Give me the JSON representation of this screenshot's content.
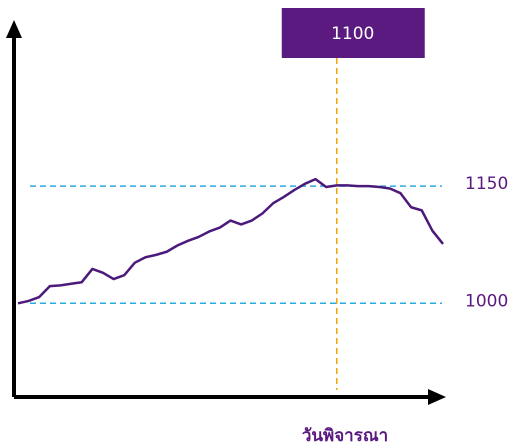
{
  "chart_data": {
    "type": "line",
    "x": [
      0,
      1,
      2,
      3,
      4,
      5,
      6,
      7,
      8,
      9,
      10,
      11,
      12,
      13,
      14,
      15,
      16,
      17,
      18,
      19,
      20,
      21,
      22,
      23,
      24,
      25,
      26,
      27,
      28,
      29,
      30,
      31,
      32,
      33,
      34,
      35,
      36,
      37,
      38,
      39,
      40
    ],
    "values": [
      1000,
      1003,
      1008,
      1022,
      1023,
      1025,
      1027,
      1044,
      1039,
      1031,
      1036,
      1052,
      1059,
      1062,
      1066,
      1074,
      1080,
      1085,
      1092,
      1097,
      1106,
      1101,
      1106,
      1115,
      1128,
      1136,
      1145,
      1153,
      1159,
      1149,
      1151,
      1151,
      1150,
      1150,
      1149,
      1147,
      1141,
      1123,
      1119,
      1093,
      1076
    ],
    "color": "#4b1a7a",
    "xlim": [
      0,
      40
    ],
    "ylim": [
      880,
      1350
    ],
    "x_label": "วันพิจารณา",
    "hlines": [
      1150,
      1000
    ],
    "hline_color": "#29abe2",
    "vline": {
      "x": 30,
      "label": "1100"
    },
    "vline_color": "#f0a30a",
    "label_box_color": "#5a1a80"
  }
}
